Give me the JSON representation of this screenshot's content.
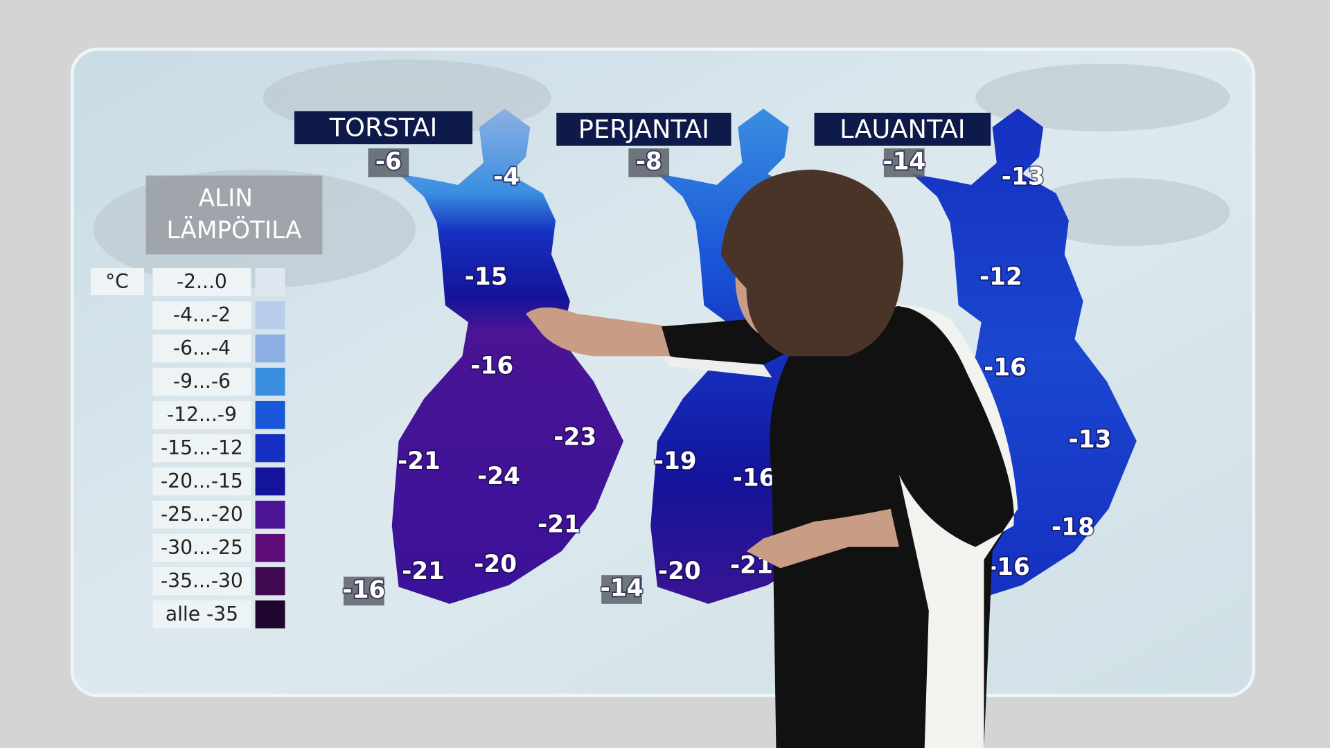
{
  "legend": {
    "title": [
      "ALIN",
      "LÄMPÖTILA"
    ],
    "unit": "°C",
    "items": [
      {
        "label": "-2...0",
        "color": "#dfe8f0"
      },
      {
        "label": "-4...-2",
        "color": "#b9cdea"
      },
      {
        "label": "-6...-4",
        "color": "#8cb0e3"
      },
      {
        "label": "-9...-6",
        "color": "#3a8ee0"
      },
      {
        "label": "-12...-9",
        "color": "#1a56d8"
      },
      {
        "label": "-15...-12",
        "color": "#1530c0"
      },
      {
        "label": "-20...-15",
        "color": "#14149a"
      },
      {
        "label": "-25...-20",
        "color": "#4a1494"
      },
      {
        "label": "-30...-25",
        "color": "#5e0c78"
      },
      {
        "label": "-35...-30",
        "color": "#40084f"
      },
      {
        "label": "alle -35",
        "color": "#20052e"
      }
    ]
  },
  "maps": [
    {
      "day": "TORSTAI",
      "labels": [
        "-6",
        "-4",
        "-15",
        "-16",
        "-23",
        "-21",
        "-24",
        "-21",
        "-21",
        "-20",
        "-16"
      ]
    },
    {
      "day": "PERJANTAI",
      "labels": [
        "-8",
        "-19",
        "-16",
        "-20",
        "-21",
        "-14"
      ]
    },
    {
      "day": "LAUANTAI",
      "labels": [
        "-14",
        "-13",
        "-12",
        "-16",
        "-13",
        "-18",
        "-16"
      ]
    }
  ]
}
